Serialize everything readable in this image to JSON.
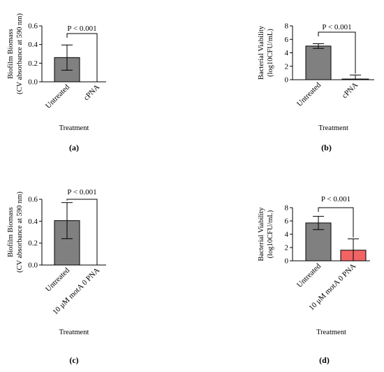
{
  "chart_data": [
    {
      "type": "bar",
      "panel_label": "(a)",
      "categories": [
        "Untreated",
        "cPNA"
      ],
      "values": [
        0.26,
        0.0
      ],
      "errors": [
        0.135,
        0.0
      ],
      "bar_colors": [
        "#808080",
        "#808080"
      ],
      "ylabel_lines": [
        "Biofilm Biomass",
        "(CV absorbance at 590 nm)"
      ],
      "xlabel": "Treatment",
      "ylim": [
        0,
        0.6
      ],
      "yticks": [
        "0.0",
        "0.2",
        "0.4",
        "0.6"
      ],
      "significance": "P < 0.001"
    },
    {
      "type": "bar",
      "panel_label": "(b)",
      "categories": [
        "Untreated",
        "cPNA"
      ],
      "values": [
        5.0,
        0.1
      ],
      "errors": [
        0.35,
        0.6
      ],
      "bar_colors": [
        "#808080",
        "#808080"
      ],
      "ylabel_lines": [
        "Bacterial Viability",
        "(log10CFU/mL)"
      ],
      "xlabel": "Treatment",
      "ylim": [
        0,
        8
      ],
      "yticks": [
        "0",
        "2",
        "4",
        "6",
        "8"
      ],
      "significance": "P < 0.001"
    },
    {
      "type": "bar",
      "panel_label": "(c)",
      "categories": [
        "Untreated",
        "10 μM motA 0 PNA"
      ],
      "values": [
        0.405,
        0.0
      ],
      "errors": [
        0.165,
        0.0
      ],
      "bar_colors": [
        "#808080",
        "#808080"
      ],
      "ylabel_lines": [
        "Biofilm Biomass",
        "(CV absorbance at 590 nm)"
      ],
      "xlabel": "Treatment",
      "ylim": [
        0,
        0.6
      ],
      "yticks": [
        "0.0",
        "0.2",
        "0.4",
        "0.6"
      ],
      "significance": "P < 0.001"
    },
    {
      "type": "bar",
      "panel_label": "(d)",
      "categories": [
        "Untreated",
        "10 μM motA 0 PNA"
      ],
      "values": [
        5.7,
        1.6
      ],
      "errors": [
        1.0,
        1.7
      ],
      "bar_colors": [
        "#808080",
        "#f26464"
      ],
      "ylabel_lines": [
        "Bacterial Viability",
        "(log10CFU/mL)"
      ],
      "xlabel": "Treatment",
      "ylim": [
        0,
        8
      ],
      "yticks": [
        "0",
        "2",
        "4",
        "6",
        "8"
      ],
      "significance": "P < 0.001"
    }
  ]
}
